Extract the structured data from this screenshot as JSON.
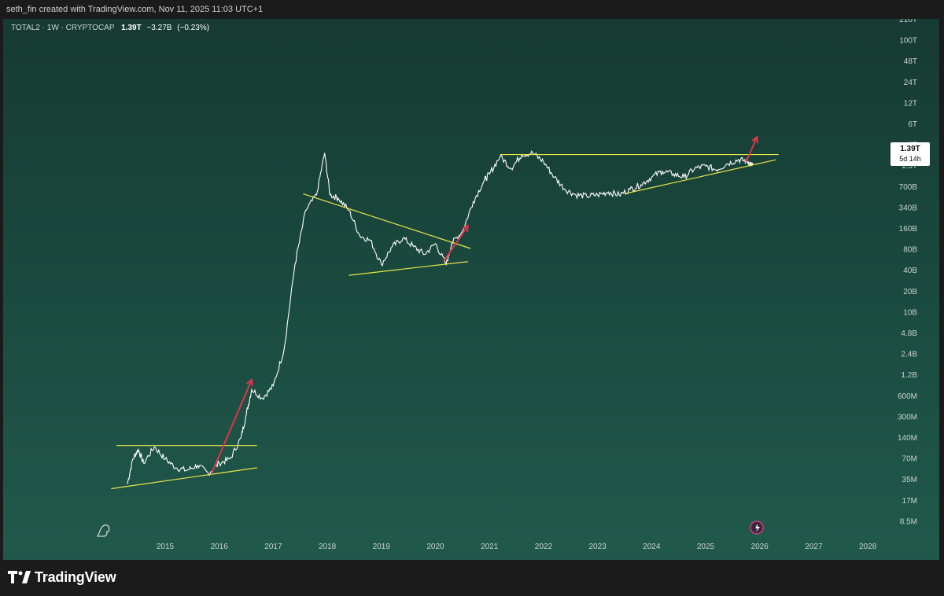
{
  "header": {
    "attribution": "seth_fin created with TradingView.com, Nov 11, 2025 11:03 UTC+1"
  },
  "legend": {
    "symbol": "TOTAL2 · 1W · CRYPTOCAP",
    "price": "1.39T",
    "change": "−3.27B",
    "change_pct": "(−0.23%)"
  },
  "price_tag": {
    "price": "1.39T",
    "countdown": "5d 14h"
  },
  "footer": {
    "brand": "TradingView"
  },
  "colors": {
    "background_top": "#173a32",
    "background_bottom": "#20594b",
    "price_line": "#ffffff",
    "trend_lines": "#e8e64a",
    "arrows": "#e0344a"
  },
  "chart_data": {
    "type": "line",
    "scale": "log",
    "y_tick_labels": [
      "210T",
      "100T",
      "48T",
      "24T",
      "12T",
      "6T",
      "3T",
      "1.5T",
      "700B",
      "340B",
      "160B",
      "80B",
      "40B",
      "20B",
      "10B",
      "4.8B",
      "2.4B",
      "1.2B",
      "600M",
      "300M",
      "140M",
      "70M",
      "35M",
      "17M",
      "8.5M"
    ],
    "x_tick_labels": [
      "2015",
      "2016",
      "2017",
      "2018",
      "2019",
      "2020",
      "2021",
      "2022",
      "2023",
      "2024",
      "2025",
      "2026",
      "2027",
      "2028"
    ],
    "series": [
      {
        "values_unit": "USD",
        "x": [
          2014.3,
          2014.4,
          2014.5,
          2014.6,
          2014.8,
          2015.0,
          2015.2,
          2015.4,
          2015.6,
          2015.8,
          2016.0,
          2016.2,
          2016.4,
          2016.5,
          2016.6,
          2016.8,
          2017.0,
          2017.2,
          2017.4,
          2017.6,
          2017.8,
          2017.95,
          2018.05,
          2018.2,
          2018.4,
          2018.6,
          2018.8,
          2019.0,
          2019.2,
          2019.4,
          2019.6,
          2019.8,
          2020.0,
          2020.2,
          2020.3,
          2020.5,
          2020.7,
          2020.9,
          2021.0,
          2021.2,
          2021.4,
          2021.6,
          2021.8,
          2022.0,
          2022.2,
          2022.4,
          2022.6,
          2022.8,
          2023.0,
          2023.2,
          2023.4,
          2023.6,
          2023.8,
          2024.0,
          2024.2,
          2024.4,
          2024.6,
          2024.8,
          2025.0,
          2025.2,
          2025.4,
          2025.6,
          2025.75,
          2025.85
        ],
        "y": [
          35000000.0,
          80000000.0,
          110000000.0,
          70000000.0,
          120000000.0,
          80000000.0,
          60000000.0,
          55000000.0,
          65000000.0,
          50000000.0,
          70000000.0,
          80000000.0,
          160000000.0,
          350000000.0,
          800000000.0,
          600000000.0,
          900000000.0,
          3000000000.0,
          50000000000.0,
          300000000000.0,
          500000000000.0,
          2000000000000.0,
          500000000000.0,
          450000000000.0,
          300000000000.0,
          130000000000.0,
          110000000000.0,
          50000000000.0,
          90000000000.0,
          120000000000.0,
          90000000000.0,
          70000000000.0,
          100000000000.0,
          50000000000.0,
          100000000000.0,
          150000000000.0,
          400000000000.0,
          800000000000.0,
          1000000000000.0,
          1800000000000.0,
          1200000000000.0,
          1900000000000.0,
          2000000000000.0,
          1500000000000.0,
          900000000000.0,
          600000000000.0,
          500000000000.0,
          480000000000.0,
          500000000000.0,
          550000000000.0,
          500000000000.0,
          600000000000.0,
          700000000000.0,
          900000000000.0,
          1100000000000.0,
          1000000000000.0,
          900000000000.0,
          1200000000000.0,
          1300000000000.0,
          1150000000000.0,
          1400000000000.0,
          1600000000000.0,
          1550000000000.0,
          1390000000000.0
        ]
      }
    ],
    "annotations": [
      {
        "type": "trendline",
        "color": "#e8e64a"
      },
      {
        "type": "arrow",
        "color": "#e0344a"
      }
    ],
    "xlabel": "",
    "ylabel": ""
  }
}
